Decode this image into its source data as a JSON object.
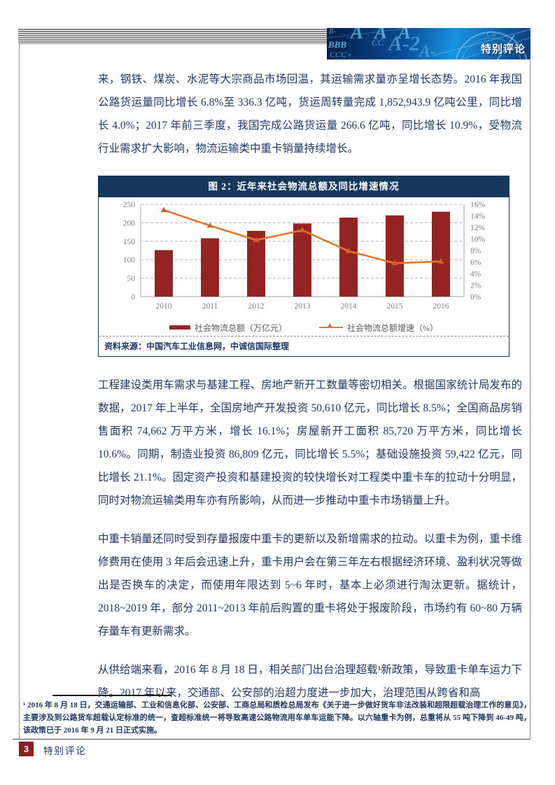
{
  "page": {
    "header_banner_label": "特别评论",
    "banner_watermarks": [
      "B-",
      "AAA",
      "Ca",
      "BBB",
      "CC",
      "A-2",
      "CCC+",
      "A-"
    ],
    "footer": {
      "page_number": "3",
      "label": "特别评论"
    },
    "colors": {
      "body_text": "#1F3864",
      "figure_title_bar": "#17375D",
      "bar_red": "#942323",
      "line_orange": "#E8762B",
      "footer_red": "#8B1E1E",
      "banner_blue": "#0A4A94"
    }
  },
  "paragraphs": {
    "p1": "来，钢铁、煤炭、水泥等大宗商品市场回温，其运输需求量亦呈增长态势。2016 年我国公路货运量同比增长 6.8%至 336.3 亿吨，货运周转量完成 1,852,943.9 亿吨公里，同比增长 4.0%；2017 年前三季度，我国完成公路货运量 266.6 亿吨，同比增长 10.9%，受物流行业需求扩大影响，物流运输类中重卡销量持续增长。",
    "p2": "工程建设类用车需求与基建工程、房地产新开工数量等密切相关。根据国家统计局发布的数据，2017 年上半年，全国房地产开发投资 50,610 亿元，同比增长 8.5%；全国商品房销售面积 74,662 万平方米，增长 16.1%；房屋新开工面积 85,720 万平方米，同比增长 10.6%。同期，制造业投资 86,809 亿元，同比增长 5.5%；基础设施投资 59,422 亿元，同比增长 21.1%。固定资产投资和基建投资的较快增长对工程类中重卡车的拉动十分明显，同时对物流运输类用车亦有所影响，从而进一步推动中重卡市场销量上升。",
    "p3": "中重卡销量还同时受到存量报废中重卡的更新以及新增需求的拉动。以重卡为例，重卡维修费用在使用 3 年后会迅速上升，重卡用户会在第三年左右根据经济环境、盈利状况等做出是否换车的决定，而使用年限达到 5~6 年时，基本上必须进行淘汰更新。据统计，2018~2019 年，部分 2011~2013 年前后购置的重卡将处于报废阶段，市场约有 60~80 万辆存量车有更新需求。",
    "p4": "从供给端来看，2016 年 8 月 18 日，相关部门出台治理超载¹新政策，导致重卡单车运力下降。2017 年以来，交通部、公安部的治超力度进一步加大，治理范围从跨省和高"
  },
  "figure": {
    "title": "图 2：近年来社会物流总额及同比增速情况",
    "source": "资料来源：中国汽车工业信息网，中诚信国际整理",
    "legend": [
      {
        "label": "社会物流总额（万亿元）",
        "type": "bar"
      },
      {
        "label": "社会物流总额增速（%）",
        "type": "line"
      }
    ]
  },
  "chart_data": {
    "type": "bar+line",
    "title": "近年来社会物流总额及同比增速情况",
    "categories": [
      "2010",
      "2011",
      "2012",
      "2013",
      "2014",
      "2015",
      "2016"
    ],
    "series": [
      {
        "name": "社会物流总额（万亿元）",
        "type": "bar",
        "axis": "left",
        "color": "#942323",
        "values": [
          126,
          158,
          178,
          198,
          214,
          220,
          230
        ]
      },
      {
        "name": "社会物流总额增速（%）",
        "type": "line",
        "axis": "right",
        "color": "#E8762B",
        "marker_color": "#D75F28",
        "values": [
          15.0,
          12.3,
          9.8,
          11.5,
          7.9,
          5.8,
          6.1
        ]
      }
    ],
    "left_axis": {
      "min": 0,
      "max": 250,
      "step": 50
    },
    "right_axis": {
      "min": 0,
      "max": 16,
      "step": 2,
      "suffix": "%"
    },
    "grid": "dashed-horizontal",
    "legend_position": "bottom",
    "axis_label_color": "#808080"
  },
  "footnote": {
    "text": "¹ 2016 年 8 月 18 日，交通运输部、工业和信息化部、公安部、工商总局和质检总局发布《关于进一步做好货车非法改装和超限超载治理工作的意见》，主要涉及到公路货车超载认定标准的统一，查超标准统一将导致高速公路物流用车单车运能下降。以六轴重卡为例，总重将从 55 吨下降到 46-49 吨，该政策已于 2016 年 9 月 21 日正式实施。"
  }
}
